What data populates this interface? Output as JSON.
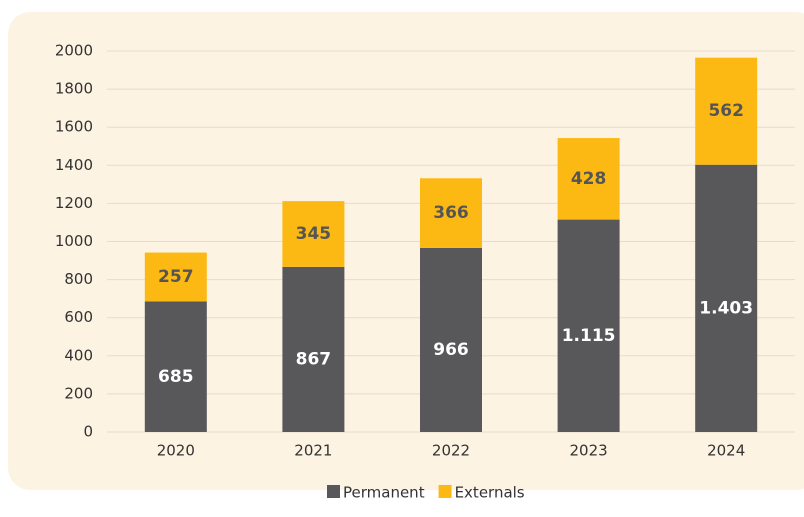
{
  "chart_data": {
    "type": "stacked_bar",
    "categories": [
      "2020",
      "2021",
      "2022",
      "2023",
      "2024"
    ],
    "series": [
      {
        "name": "Permanent",
        "color": "#58585a",
        "values": [
          685,
          867,
          966,
          1115,
          1403
        ],
        "value_labels": [
          "685",
          "867",
          "966",
          "1.115",
          "1.403"
        ]
      },
      {
        "name": "Externals",
        "color": "#fdb913",
        "values": [
          257,
          345,
          366,
          428,
          562
        ]
      }
    ],
    "ylim": [
      0,
      2000
    ],
    "yticks": [
      0,
      200,
      400,
      600,
      800,
      1000,
      1200,
      1400,
      1600,
      1800,
      2000
    ],
    "grid": true,
    "legend": "bottom"
  }
}
